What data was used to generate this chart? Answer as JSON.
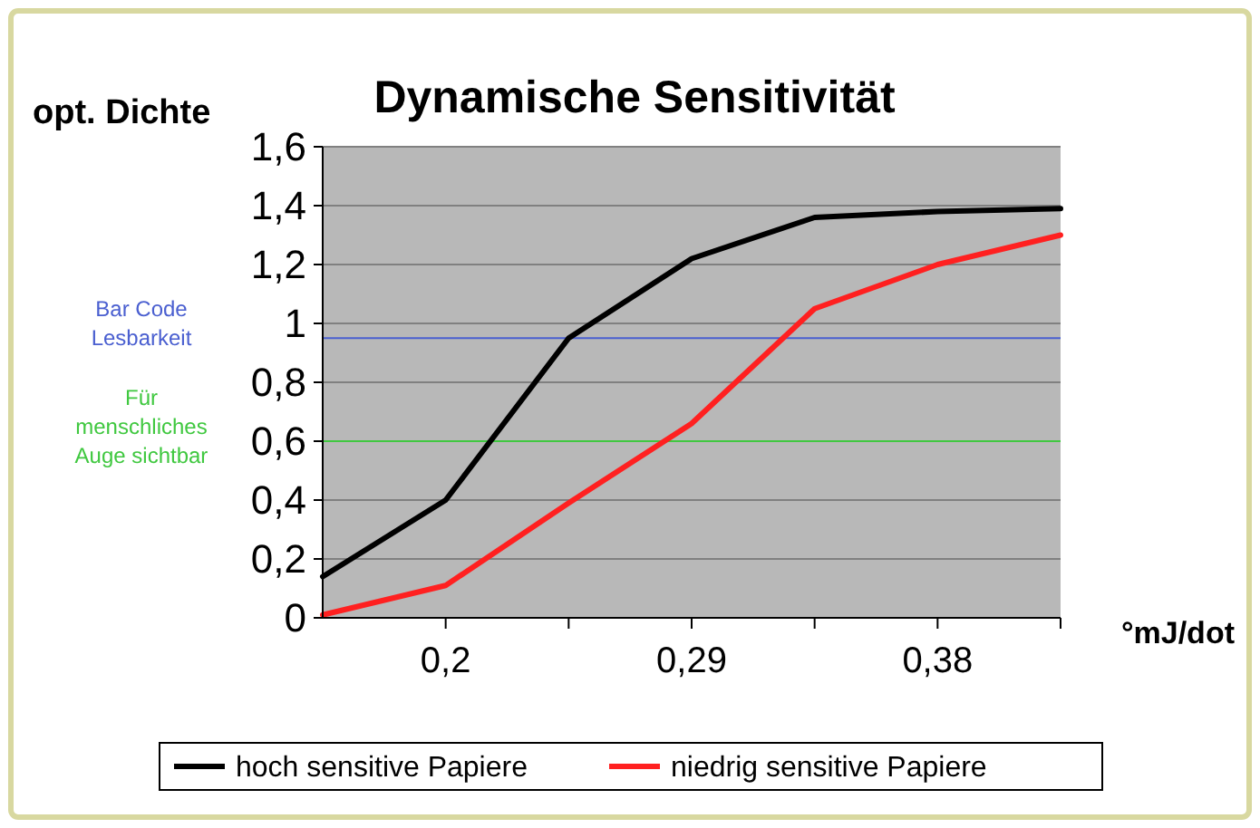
{
  "chart_data": {
    "type": "line",
    "title": "Dynamische Sensitivität",
    "ylabel": "opt. Dichte",
    "xlabel": "°mJ/dot",
    "x": [
      0.155,
      0.2,
      0.245,
      0.29,
      0.335,
      0.38,
      0.425
    ],
    "series": [
      {
        "name": "hoch sensitive Papiere",
        "color": "#000000",
        "values": [
          0.14,
          0.4,
          0.95,
          1.22,
          1.36,
          1.38,
          1.39
        ]
      },
      {
        "name": "niedrig sensitive Papiere",
        "color": "#ff2020",
        "values": [
          0.01,
          0.11,
          0.39,
          0.66,
          1.05,
          1.2,
          1.3
        ]
      }
    ],
    "xlim": [
      0.155,
      0.425
    ],
    "xticks": [
      {
        "value": 0.2,
        "label": "0,2"
      },
      {
        "value": 0.245,
        "label": null
      },
      {
        "value": 0.29,
        "label": "0,29"
      },
      {
        "value": 0.335,
        "label": null
      },
      {
        "value": 0.38,
        "label": "0,38"
      },
      {
        "value": 0.425,
        "label": null
      }
    ],
    "ylim": [
      0,
      1.6
    ],
    "yticks": [
      {
        "value": 0,
        "label": "0"
      },
      {
        "value": 0.2,
        "label": "0,2"
      },
      {
        "value": 0.4,
        "label": "0,4"
      },
      {
        "value": 0.6,
        "label": "0,6"
      },
      {
        "value": 0.8,
        "label": "0,8"
      },
      {
        "value": 1,
        "label": "1"
      },
      {
        "value": 1.2,
        "label": "1,2"
      },
      {
        "value": 1.4,
        "label": "1,4"
      },
      {
        "value": 1.6,
        "label": "1,6"
      }
    ],
    "grid": "y",
    "legend": "bottom",
    "marker": "none",
    "line_style": "solid",
    "ref_lines": [
      {
        "axis": "y",
        "value": 0.95,
        "label": "Bar Code Lesbarkeit",
        "color": "#4a5fd0"
      },
      {
        "axis": "y",
        "value": 0.6,
        "label": "Für menschliches Auge sichtbar",
        "color": "#40c840"
      }
    ]
  }
}
